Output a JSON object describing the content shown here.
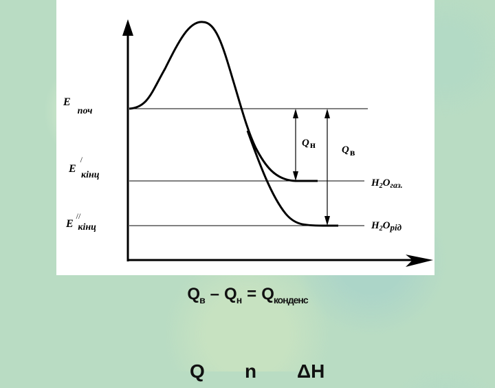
{
  "diagram": {
    "levels": {
      "e_start": {
        "main": "E",
        "sub": "поч"
      },
      "e_end_1": {
        "main": "E",
        "sup": "/",
        "sub": "кінц"
      },
      "e_end_2": {
        "main": "E",
        "sup": "//",
        "sub": "кінц"
      }
    },
    "heats": {
      "q_n": {
        "main": "Q",
        "sub": "н"
      },
      "q_v": {
        "main": "Q",
        "sub": "в"
      }
    },
    "products": {
      "gas": {
        "main": "H",
        "index": "2",
        "rest": "O",
        "sub": "газ."
      },
      "liquid": {
        "main": "H",
        "index": "2",
        "rest": "O",
        "sub": "рід"
      }
    }
  },
  "formula": {
    "parts": [
      {
        "main": "Q",
        "sub": "в"
      },
      {
        "op": "–"
      },
      {
        "main": "Q",
        "sub": "н"
      },
      {
        "op": "="
      },
      {
        "main": "Q",
        "sub": "конденс"
      }
    ]
  },
  "formula_2": {
    "parts": [
      "Q",
      "n",
      "ΔH"
    ]
  }
}
